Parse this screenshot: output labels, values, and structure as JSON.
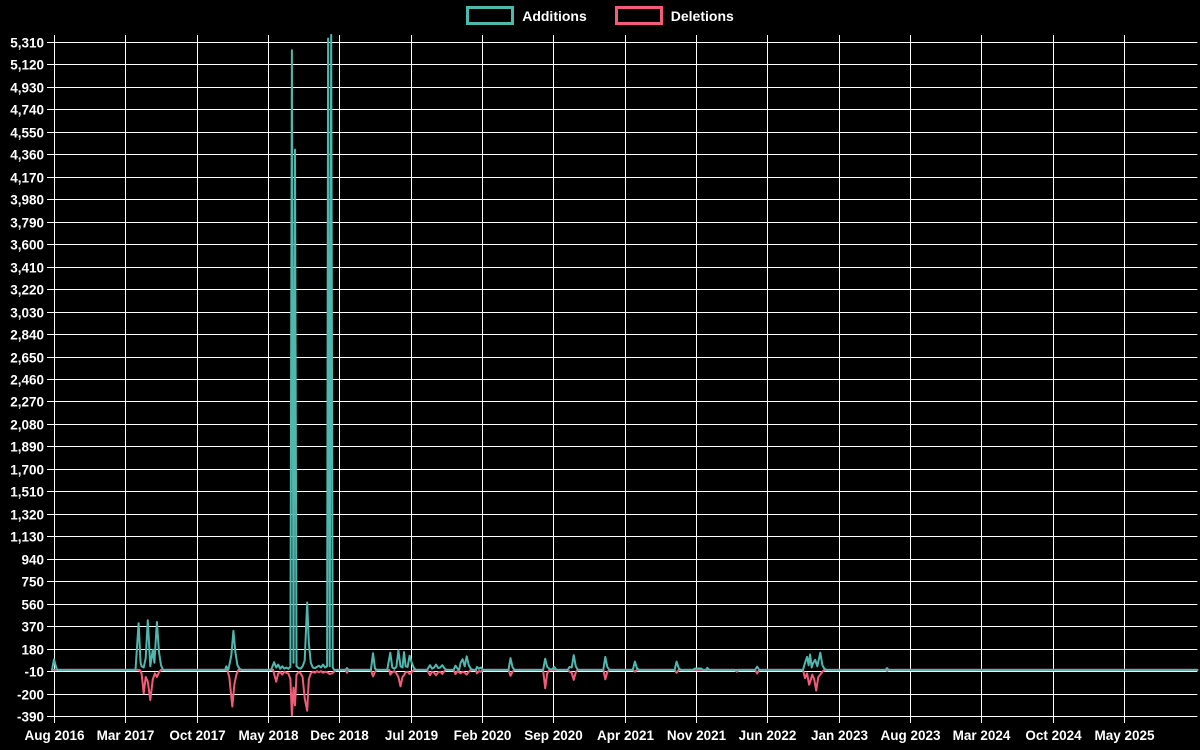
{
  "legend": {
    "items": [
      {
        "label": "Additions",
        "color": "#4fb8ae"
      },
      {
        "label": "Deletions",
        "color": "#f25c78"
      }
    ]
  },
  "colors": {
    "background": "#000000",
    "grid": "#ffffff",
    "text": "#ffffff",
    "additions": "#4fb8ae",
    "deletions": "#f25c78"
  },
  "chart_data": {
    "type": "line",
    "title": "",
    "xlabel": "",
    "ylabel": "",
    "grid": true,
    "legend_position": "top-center",
    "ylim": [
      -390,
      5310
    ],
    "y_tick_step": 190,
    "y_ticks": [
      5310,
      5120,
      4930,
      4740,
      4550,
      4360,
      4170,
      3980,
      3790,
      3600,
      3410,
      3220,
      3030,
      2840,
      2650,
      2460,
      2270,
      2080,
      1890,
      1700,
      1510,
      1320,
      1130,
      940,
      750,
      560,
      370,
      180,
      -10,
      -200,
      -390
    ],
    "x_ticks": [
      "Aug 2016",
      "Mar 2017",
      "Oct 2017",
      "May 2018",
      "Dec 2018",
      "Jul 2019",
      "Feb 2020",
      "Sep 2020",
      "Apr 2021",
      "Nov 2021",
      "Jun 2022",
      "Jan 2023",
      "Aug 2023",
      "Mar 2024",
      "Oct 2024",
      "May 2025"
    ],
    "x_tick_month_step": 7,
    "xlim_months": [
      -0.3,
      112.2
    ],
    "series": [
      {
        "name": "Deletions",
        "color": "#f25c78",
        "points": [
          [
            -0.2,
            0
          ],
          [
            8.4,
            0
          ],
          [
            8.6,
            -30
          ],
          [
            8.8,
            -200
          ],
          [
            9.0,
            -60
          ],
          [
            9.2,
            -100
          ],
          [
            9.45,
            -255
          ],
          [
            9.7,
            -80
          ],
          [
            9.9,
            -30
          ],
          [
            10.1,
            -60
          ],
          [
            10.3,
            -20
          ],
          [
            10.5,
            0
          ],
          [
            17.0,
            0
          ],
          [
            17.2,
            -60
          ],
          [
            17.5,
            -310
          ],
          [
            17.7,
            -120
          ],
          [
            17.9,
            -40
          ],
          [
            18.1,
            0
          ],
          [
            21.5,
            0
          ],
          [
            21.8,
            -100
          ],
          [
            22.0,
            -30
          ],
          [
            22.2,
            -20
          ],
          [
            22.4,
            -40
          ],
          [
            22.6,
            -15
          ],
          [
            22.8,
            -25
          ],
          [
            23.0,
            -30
          ],
          [
            23.2,
            -80
          ],
          [
            23.35,
            -385
          ],
          [
            23.5,
            -150
          ],
          [
            23.65,
            -300
          ],
          [
            23.8,
            -40
          ],
          [
            24.0,
            -20
          ],
          [
            24.2,
            -30
          ],
          [
            24.4,
            -60
          ],
          [
            24.6,
            -240
          ],
          [
            24.85,
            -345
          ],
          [
            25.0,
            -80
          ],
          [
            25.2,
            -30
          ],
          [
            25.4,
            -15
          ],
          [
            25.6,
            -25
          ],
          [
            25.8,
            -10
          ],
          [
            26.0,
            -20
          ],
          [
            26.2,
            -10
          ],
          [
            26.4,
            -25
          ],
          [
            26.6,
            -15
          ],
          [
            26.8,
            -20
          ],
          [
            27.05,
            -35
          ],
          [
            27.3,
            -30
          ],
          [
            27.5,
            -15
          ],
          [
            27.7,
            0
          ],
          [
            28.6,
            0
          ],
          [
            28.75,
            -25
          ],
          [
            28.9,
            0
          ],
          [
            31.1,
            0
          ],
          [
            31.3,
            -55
          ],
          [
            31.5,
            -15
          ],
          [
            31.7,
            0
          ],
          [
            32.9,
            0
          ],
          [
            33.0,
            -40
          ],
          [
            33.2,
            -20
          ],
          [
            33.4,
            -10
          ],
          [
            33.6,
            -30
          ],
          [
            33.8,
            -60
          ],
          [
            34.0,
            -140
          ],
          [
            34.2,
            -60
          ],
          [
            34.35,
            -45
          ],
          [
            34.5,
            -20
          ],
          [
            34.7,
            -15
          ],
          [
            34.9,
            -35
          ],
          [
            35.1,
            -20
          ],
          [
            35.3,
            0
          ],
          [
            36.6,
            0
          ],
          [
            36.9,
            -45
          ],
          [
            37.1,
            -15
          ],
          [
            37.3,
            -25
          ],
          [
            37.5,
            -45
          ],
          [
            37.7,
            -20
          ],
          [
            37.9,
            -15
          ],
          [
            38.1,
            -35
          ],
          [
            38.3,
            -10
          ],
          [
            38.5,
            0
          ],
          [
            39.2,
            0
          ],
          [
            39.4,
            -35
          ],
          [
            39.6,
            -10
          ],
          [
            39.75,
            -20
          ],
          [
            39.9,
            -30
          ],
          [
            40.1,
            -15
          ],
          [
            40.3,
            -25
          ],
          [
            40.5,
            -40
          ],
          [
            40.7,
            -15
          ],
          [
            40.9,
            0
          ],
          [
            41.4,
            0
          ],
          [
            41.5,
            -30
          ],
          [
            41.7,
            -10
          ],
          [
            41.9,
            -15
          ],
          [
            42.1,
            0
          ],
          [
            44.6,
            0
          ],
          [
            44.8,
            -50
          ],
          [
            45.0,
            -15
          ],
          [
            45.2,
            0
          ],
          [
            48.0,
            0
          ],
          [
            48.2,
            -155
          ],
          [
            48.4,
            -30
          ],
          [
            48.6,
            0
          ],
          [
            50.4,
            0
          ],
          [
            50.6,
            -15
          ],
          [
            50.8,
            -25
          ],
          [
            51.0,
            -85
          ],
          [
            51.2,
            -20
          ],
          [
            51.4,
            0
          ],
          [
            53.9,
            0
          ],
          [
            54.1,
            -80
          ],
          [
            54.3,
            -20
          ],
          [
            54.5,
            0
          ],
          [
            56.8,
            0
          ],
          [
            57.0,
            -15
          ],
          [
            57.2,
            0
          ],
          [
            60.9,
            0
          ],
          [
            61.1,
            -25
          ],
          [
            61.3,
            0
          ],
          [
            66.8,
            0
          ],
          [
            67.0,
            -15
          ],
          [
            67.2,
            0
          ],
          [
            68.8,
            0
          ],
          [
            69.0,
            -30
          ],
          [
            69.2,
            0
          ],
          [
            73.5,
            0
          ],
          [
            73.7,
            -70
          ],
          [
            73.9,
            -30
          ],
          [
            74.1,
            -125
          ],
          [
            74.25,
            -90
          ],
          [
            74.4,
            -40
          ],
          [
            74.6,
            -80
          ],
          [
            74.8,
            -175
          ],
          [
            75.0,
            -60
          ],
          [
            75.2,
            -40
          ],
          [
            75.4,
            -15
          ],
          [
            75.6,
            0
          ],
          [
            81.6,
            0
          ],
          [
            81.75,
            -10
          ],
          [
            81.9,
            0
          ],
          [
            112.2,
            0
          ]
        ]
      },
      {
        "name": "Additions",
        "color": "#4fb8ae",
        "points": [
          [
            -0.2,
            0
          ],
          [
            0,
            90
          ],
          [
            0.15,
            40
          ],
          [
            0.3,
            0
          ],
          [
            8.0,
            0
          ],
          [
            8.3,
            395
          ],
          [
            8.5,
            60
          ],
          [
            8.6,
            30
          ],
          [
            8.8,
            20
          ],
          [
            9.0,
            100
          ],
          [
            9.2,
            420
          ],
          [
            9.45,
            30
          ],
          [
            9.7,
            170
          ],
          [
            9.85,
            60
          ],
          [
            10.1,
            405
          ],
          [
            10.3,
            150
          ],
          [
            10.5,
            40
          ],
          [
            10.7,
            0
          ],
          [
            16.8,
            0
          ],
          [
            16.9,
            30
          ],
          [
            17.1,
            0
          ],
          [
            17.4,
            120
          ],
          [
            17.6,
            330
          ],
          [
            17.8,
            150
          ],
          [
            18.0,
            40
          ],
          [
            18.2,
            10
          ],
          [
            18.4,
            0
          ],
          [
            21.3,
            0
          ],
          [
            21.6,
            65
          ],
          [
            21.8,
            20
          ],
          [
            22.0,
            45
          ],
          [
            22.2,
            10
          ],
          [
            22.4,
            30
          ],
          [
            22.6,
            10
          ],
          [
            22.8,
            20
          ],
          [
            23.0,
            10
          ],
          [
            23.2,
            25
          ],
          [
            23.35,
            5240
          ],
          [
            23.5,
            60
          ],
          [
            23.65,
            4400
          ],
          [
            23.8,
            30
          ],
          [
            24.0,
            15
          ],
          [
            24.2,
            10
          ],
          [
            24.4,
            30
          ],
          [
            24.6,
            80
          ],
          [
            24.85,
            570
          ],
          [
            25.0,
            230
          ],
          [
            25.2,
            60
          ],
          [
            25.4,
            20
          ],
          [
            25.6,
            15
          ],
          [
            25.8,
            25
          ],
          [
            26.0,
            35
          ],
          [
            26.2,
            20
          ],
          [
            26.4,
            45
          ],
          [
            26.6,
            20
          ],
          [
            26.8,
            30
          ],
          [
            26.9,
            5340
          ],
          [
            27.05,
            30
          ],
          [
            27.2,
            5370
          ],
          [
            27.35,
            20
          ],
          [
            27.5,
            0
          ],
          [
            28.6,
            0
          ],
          [
            28.75,
            15
          ],
          [
            28.9,
            0
          ],
          [
            31.1,
            0
          ],
          [
            31.3,
            140
          ],
          [
            31.5,
            10
          ],
          [
            31.7,
            0
          ],
          [
            32.7,
            0
          ],
          [
            33.0,
            145
          ],
          [
            33.2,
            20
          ],
          [
            33.4,
            10
          ],
          [
            33.6,
            25
          ],
          [
            33.8,
            165
          ],
          [
            34.0,
            30
          ],
          [
            34.2,
            20
          ],
          [
            34.35,
            150
          ],
          [
            34.5,
            30
          ],
          [
            34.7,
            25
          ],
          [
            34.9,
            120
          ],
          [
            35.1,
            60
          ],
          [
            35.3,
            20
          ],
          [
            35.5,
            0
          ],
          [
            36.6,
            0
          ],
          [
            36.9,
            40
          ],
          [
            37.1,
            10
          ],
          [
            37.3,
            20
          ],
          [
            37.5,
            45
          ],
          [
            37.7,
            15
          ],
          [
            37.9,
            20
          ],
          [
            38.1,
            40
          ],
          [
            38.3,
            15
          ],
          [
            38.5,
            0
          ],
          [
            39.2,
            0
          ],
          [
            39.4,
            35
          ],
          [
            39.6,
            10
          ],
          [
            39.75,
            0
          ],
          [
            39.9,
            60
          ],
          [
            40.1,
            90
          ],
          [
            40.3,
            30
          ],
          [
            40.5,
            115
          ],
          [
            40.7,
            40
          ],
          [
            40.9,
            10
          ],
          [
            41.1,
            0
          ],
          [
            41.4,
            0
          ],
          [
            41.5,
            25
          ],
          [
            41.7,
            10
          ],
          [
            41.9,
            20
          ],
          [
            42.1,
            0
          ],
          [
            44.6,
            0
          ],
          [
            44.8,
            100
          ],
          [
            45.0,
            20
          ],
          [
            45.2,
            0
          ],
          [
            48.0,
            0
          ],
          [
            48.2,
            95
          ],
          [
            48.4,
            25
          ],
          [
            48.6,
            10
          ],
          [
            48.8,
            0
          ],
          [
            49.1,
            25
          ],
          [
            49.3,
            0
          ],
          [
            50.4,
            0
          ],
          [
            50.6,
            25
          ],
          [
            50.8,
            20
          ],
          [
            51.0,
            125
          ],
          [
            51.2,
            30
          ],
          [
            51.4,
            0
          ],
          [
            53.9,
            0
          ],
          [
            54.1,
            110
          ],
          [
            54.3,
            25
          ],
          [
            54.5,
            0
          ],
          [
            56.8,
            0
          ],
          [
            57.0,
            70
          ],
          [
            57.2,
            15
          ],
          [
            57.4,
            0
          ],
          [
            60.9,
            0
          ],
          [
            61.1,
            70
          ],
          [
            61.3,
            15
          ],
          [
            61.5,
            0
          ],
          [
            62.7,
            0
          ],
          [
            62.9,
            12
          ],
          [
            63.5,
            12
          ],
          [
            63.7,
            0
          ],
          [
            64.0,
            0
          ],
          [
            64.1,
            18
          ],
          [
            64.3,
            0
          ],
          [
            68.8,
            0
          ],
          [
            69.0,
            28
          ],
          [
            69.2,
            0
          ],
          [
            73.5,
            0
          ],
          [
            73.7,
            60
          ],
          [
            73.9,
            110
          ],
          [
            74.05,
            40
          ],
          [
            74.2,
            130
          ],
          [
            74.35,
            20
          ],
          [
            74.5,
            60
          ],
          [
            74.7,
            85
          ],
          [
            74.9,
            30
          ],
          [
            75.2,
            145
          ],
          [
            75.4,
            40
          ],
          [
            75.6,
            10
          ],
          [
            75.8,
            0
          ],
          [
            81.6,
            0
          ],
          [
            81.75,
            15
          ],
          [
            81.9,
            0
          ],
          [
            112.2,
            0
          ]
        ]
      }
    ]
  }
}
